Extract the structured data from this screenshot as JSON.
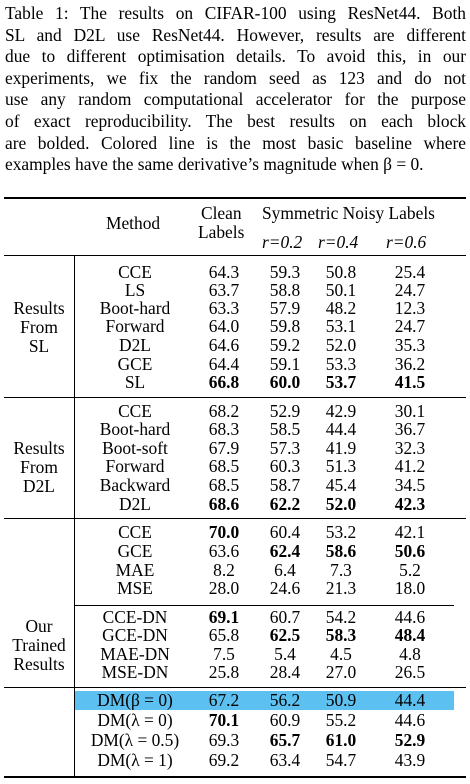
{
  "caption": [
    "Table 1: The results on CIFAR-100 using ResNet44.  Both",
    "SL and D2L use ResNet44. However, results are different",
    "due to different optimisation details. To avoid this, in our",
    "experiments, we fix the random seed as 123 and do not",
    "use any random computational accelerator for the purpose",
    "of exact reproducibility.  The best results on each block",
    "are bolded. Colored line is the most basic baseline where",
    "examples have the same derivative’s magnitude when β = 0."
  ],
  "header": {
    "method": "Method",
    "clean_1": "Clean",
    "clean_2": "Labels",
    "symmetric": "Symmetric Noisy Labels",
    "r2": "r=0.2",
    "r4": "r=0.4",
    "r6": "r=0.6"
  },
  "groups": [
    [
      "Results",
      "From",
      "SL"
    ],
    [
      "Results",
      "From",
      "D2L"
    ],
    [
      "Our",
      "Trained",
      "Results"
    ]
  ],
  "highlight_color": "#5cc0f0",
  "rows": [
    {
      "m": "CCE",
      "c": "64.3",
      "a": "59.3",
      "b": "50.8",
      "d": "25.4"
    },
    {
      "m": "LS",
      "c": "63.7",
      "a": "58.8",
      "b": "50.1",
      "d": "24.7"
    },
    {
      "m": "Boot-hard",
      "c": "63.3",
      "a": "57.9",
      "b": "48.2",
      "d": "12.3"
    },
    {
      "m": "Forward",
      "c": "64.0",
      "a": "59.8",
      "b": "53.1",
      "d": "24.7"
    },
    {
      "m": "D2L",
      "c": "64.6",
      "a": "59.2",
      "b": "52.0",
      "d": "35.3"
    },
    {
      "m": "GCE",
      "c": "64.4",
      "a": "59.1",
      "b": "53.3",
      "d": "36.2"
    },
    {
      "m": "SL",
      "c": "66.8",
      "a": "60.0",
      "b": "53.7",
      "d": "41.5"
    },
    {
      "m": "CCE",
      "c": "68.2",
      "a": "52.9",
      "b": "42.9",
      "d": "30.1"
    },
    {
      "m": "Boot-hard",
      "c": "68.3",
      "a": "58.5",
      "b": "44.4",
      "d": "36.7"
    },
    {
      "m": "Boot-soft",
      "c": "67.9",
      "a": "57.3",
      "b": "41.9",
      "d": "32.3"
    },
    {
      "m": "Forward",
      "c": "68.5",
      "a": "60.3",
      "b": "51.3",
      "d": "41.2"
    },
    {
      "m": "Backward",
      "c": "68.5",
      "a": "58.7",
      "b": "45.4",
      "d": "34.5"
    },
    {
      "m": "D2L",
      "c": "68.6",
      "a": "62.2",
      "b": "52.0",
      "d": "42.3"
    },
    {
      "m": "CCE",
      "c": "70.0",
      "a": "60.4",
      "b": "53.2",
      "d": "42.1"
    },
    {
      "m": "GCE",
      "c": "63.6",
      "a": "62.4",
      "b": "58.6",
      "d": "50.6"
    },
    {
      "m": "MAE",
      "c": "8.2",
      "a": "6.4",
      "b": "7.3",
      "d": "5.2"
    },
    {
      "m": "MSE",
      "c": "28.0",
      "a": "24.6",
      "b": "21.3",
      "d": "18.0"
    },
    {
      "m": "CCE-DN",
      "c": "69.1",
      "a": "60.7",
      "b": "54.2",
      "d": "44.6"
    },
    {
      "m": "GCE-DN",
      "c": "65.8",
      "a": "62.5",
      "b": "58.3",
      "d": "48.4"
    },
    {
      "m": "MAE-DN",
      "c": "7.5",
      "a": "5.4",
      "b": "4.5",
      "d": "4.8"
    },
    {
      "m": "MSE-DN",
      "c": "25.8",
      "a": "28.4",
      "b": "27.0",
      "d": "26.5"
    },
    {
      "m": "DM(β = 0)",
      "c": "67.2",
      "a": "56.2",
      "b": "50.9",
      "d": "44.4"
    },
    {
      "m": "DM(λ = 0)",
      "c": "70.1",
      "a": "60.9",
      "b": "55.2",
      "d": "44.6"
    },
    {
      "m": "DM(λ = 0.5)",
      "c": "69.3",
      "a": "65.7",
      "b": "61.0",
      "d": "52.9"
    },
    {
      "m": "DM(λ = 1)",
      "c": "69.2",
      "a": "63.4",
      "b": "54.7",
      "d": "43.9"
    }
  ]
}
